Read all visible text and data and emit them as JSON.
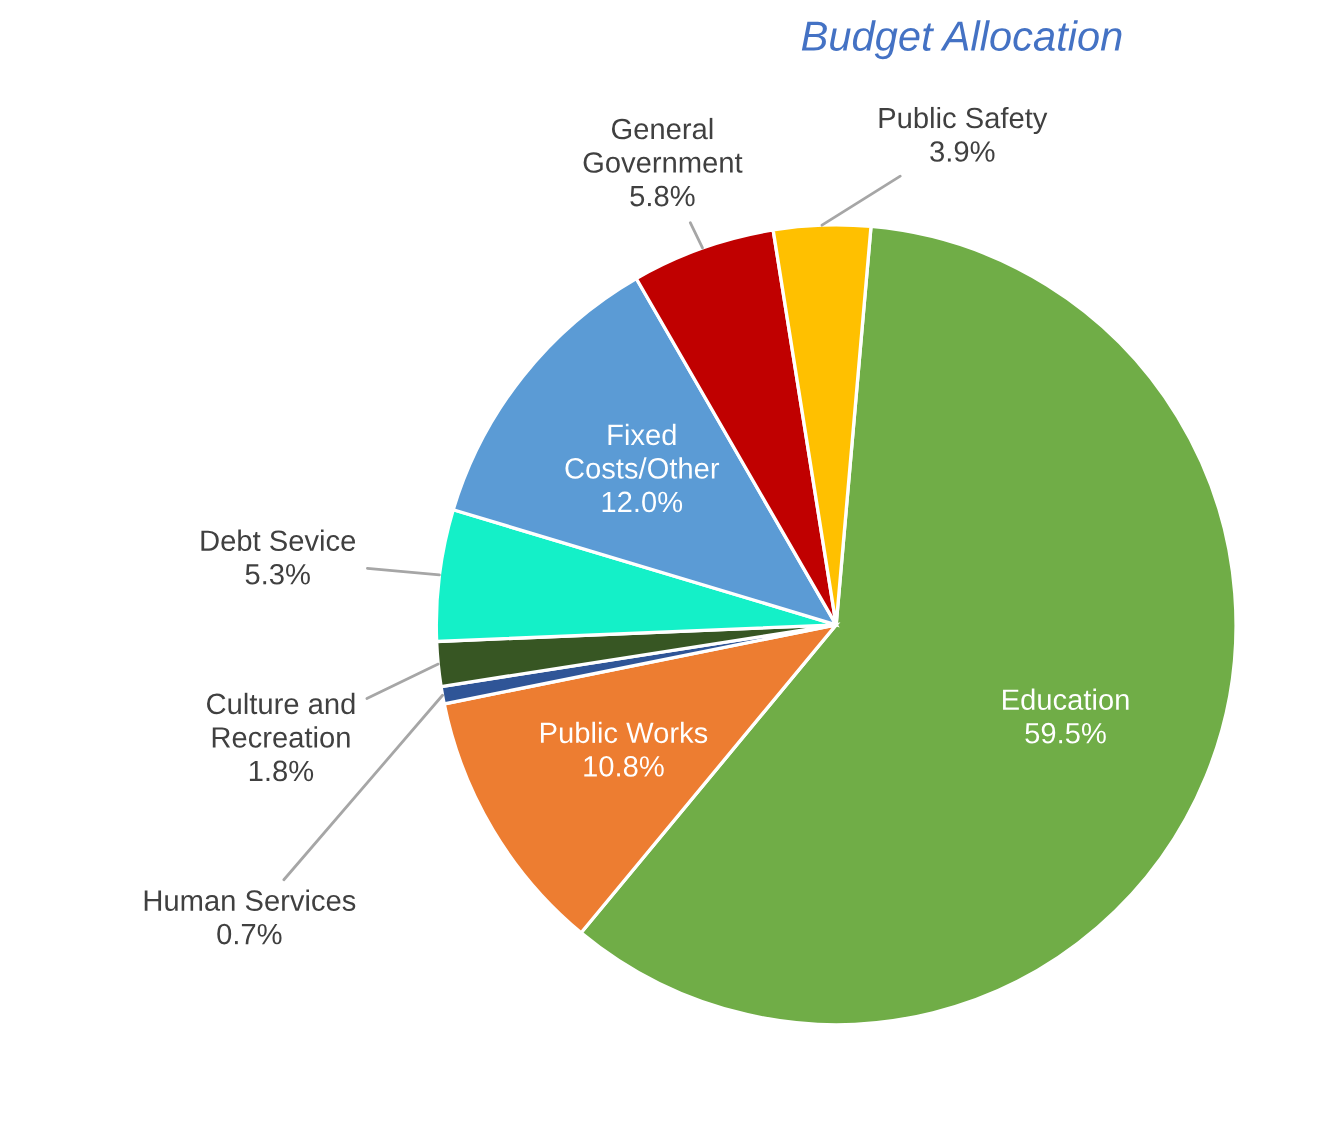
{
  "chart_data": {
    "type": "pie",
    "title": "Budget Allocation",
    "categories": [
      "Education",
      "Public Works",
      "Human Services",
      "Culture and\nRecreation",
      "Debt Sevice",
      "Fixed\nCosts/Other",
      "General\nGovernment",
      "Public Safety"
    ],
    "values": [
      59.5,
      10.8,
      0.7,
      1.8,
      5.3,
      12.0,
      5.8,
      3.9
    ],
    "colors": [
      "#70ad47",
      "#ed7d31",
      "#2f5597",
      "#375623",
      "#14f0c8",
      "#5b9bd5",
      "#c00000",
      "#ffc000"
    ],
    "value_labels": [
      "59.5%",
      "10.8%",
      "0.7%",
      "1.8%",
      "5.3%",
      "12.0%",
      "5.8%",
      "3.9%"
    ],
    "legend": false
  }
}
